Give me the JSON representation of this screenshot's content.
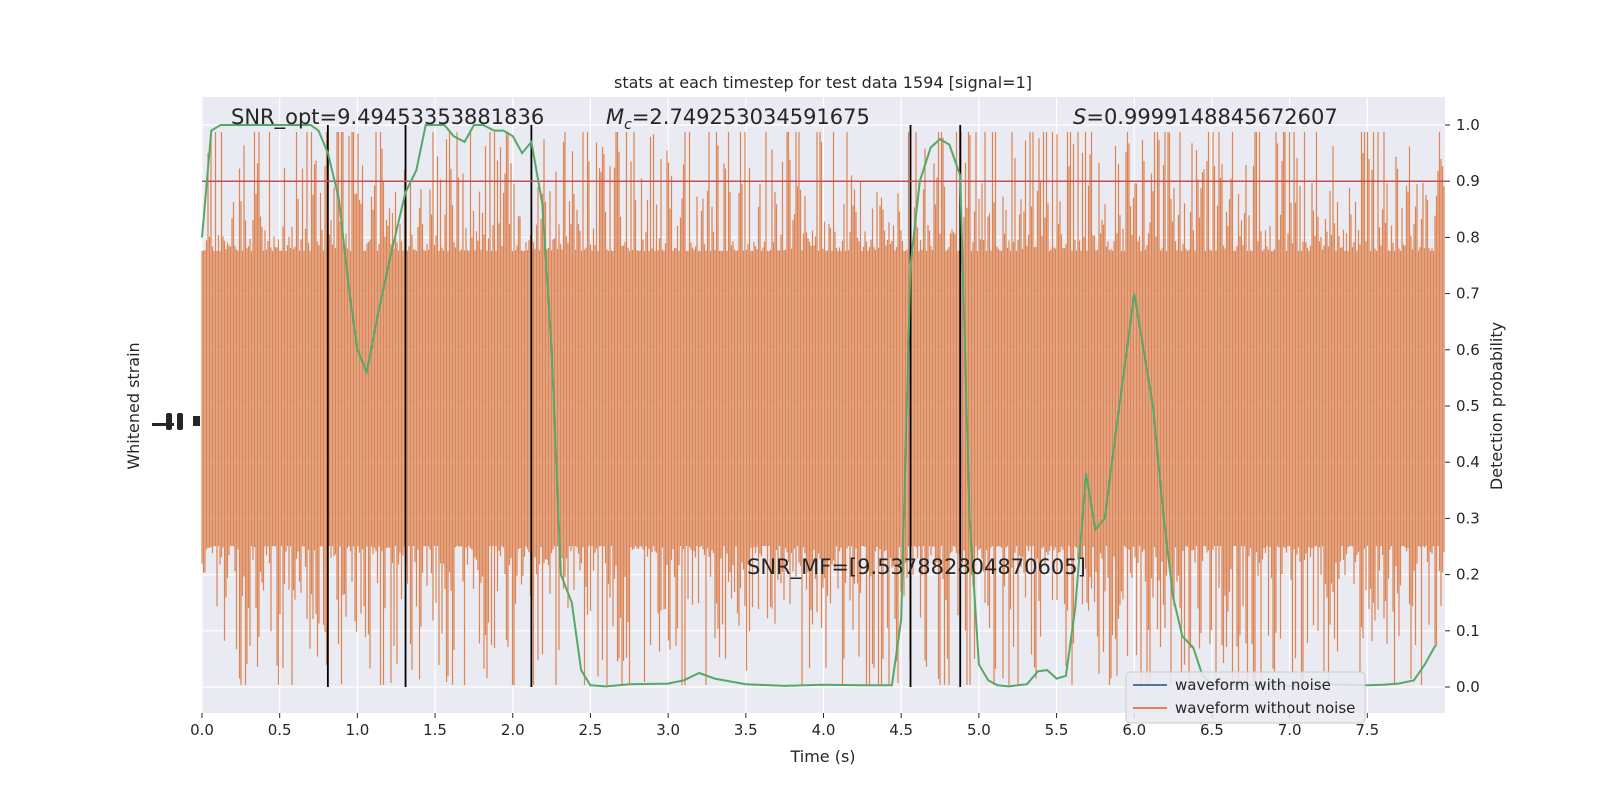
{
  "chart_data": {
    "type": "line",
    "title": "stats at each timestep for test data 1594 [signal=1]",
    "xlabel": "Time (s)",
    "ylabel_left": "Whitened strain",
    "ylabel_right": "Detection probability",
    "xlim": [
      0.0,
      8.0
    ],
    "ylim_right": [
      -0.05,
      1.05
    ],
    "x_ticks": [
      "0.0",
      "0.5",
      "1.0",
      "1.5",
      "2.0",
      "2.5",
      "3.0",
      "3.5",
      "4.0",
      "4.5",
      "5.0",
      "5.5",
      "6.0",
      "6.5",
      "7.0",
      "7.5"
    ],
    "y_ticks_right": [
      "0.0",
      "0.1",
      "0.2",
      "0.3",
      "0.4",
      "0.5",
      "0.6",
      "0.7",
      "0.8",
      "0.9",
      "1.0"
    ],
    "grid": true,
    "legend_placement": "lower-right",
    "threshold": 0.9,
    "vertical_markers": [
      0.81,
      1.31,
      2.12,
      4.56,
      4.88
    ],
    "annotations": {
      "snr_opt": "SNR_opt=9.49453353881836",
      "chirp_mass_symbol": "M",
      "chirp_mass_subscript": "c",
      "chirp_mass_value": "=2.749253034591675",
      "score_symbol": "S",
      "score_value": "=0.9999148845672607",
      "snr_mf": "SNR_MF=[9.537882804870605]"
    },
    "series": [
      {
        "name": "waveform with noise",
        "color": "#4c72b0"
      },
      {
        "name": "waveform without noise",
        "color": "#dd8452"
      },
      {
        "color": "#55a868",
        "x": [
          0.0,
          0.06,
          0.12,
          0.25,
          0.4,
          0.55,
          0.7,
          0.75,
          0.81,
          0.88,
          0.95,
          1.0,
          1.06,
          1.13,
          1.2,
          1.25,
          1.31,
          1.38,
          1.44,
          1.5,
          1.56,
          1.62,
          1.69,
          1.75,
          1.81,
          1.88,
          1.94,
          2.0,
          2.06,
          2.12,
          2.19,
          2.25,
          2.31,
          2.38,
          2.44,
          2.5,
          2.6,
          2.75,
          3.0,
          3.1,
          3.2,
          3.3,
          3.5,
          3.75,
          4.0,
          4.25,
          4.44,
          4.5,
          4.56,
          4.62,
          4.69,
          4.75,
          4.81,
          4.88,
          4.94,
          5.0,
          5.06,
          5.12,
          5.19,
          5.25,
          5.31,
          5.38,
          5.44,
          5.5,
          5.56,
          5.62,
          5.69,
          5.75,
          5.81,
          5.88,
          6.0,
          6.06,
          6.12,
          6.19,
          6.25,
          6.31,
          6.38,
          6.44,
          6.5,
          6.6,
          6.75,
          7.0,
          7.25,
          7.5,
          7.6,
          7.7,
          7.8,
          7.87,
          7.94
        ],
        "values": [
          0.8,
          0.99,
          1.0,
          1.0,
          1.0,
          1.0,
          1.0,
          0.99,
          0.95,
          0.87,
          0.7,
          0.6,
          0.56,
          0.66,
          0.75,
          0.81,
          0.88,
          0.92,
          1.0,
          1.0,
          1.0,
          0.98,
          0.97,
          1.0,
          1.0,
          0.99,
          0.99,
          0.98,
          0.95,
          0.97,
          0.86,
          0.6,
          0.2,
          0.15,
          0.03,
          0.003,
          0.001,
          0.005,
          0.006,
          0.012,
          0.025,
          0.015,
          0.005,
          0.002,
          0.004,
          0.003,
          0.003,
          0.12,
          0.75,
          0.9,
          0.96,
          0.975,
          0.965,
          0.91,
          0.3,
          0.04,
          0.012,
          0.003,
          0.001,
          0.003,
          0.005,
          0.028,
          0.03,
          0.015,
          0.02,
          0.14,
          0.38,
          0.28,
          0.3,
          0.45,
          0.7,
          0.6,
          0.5,
          0.3,
          0.16,
          0.09,
          0.07,
          0.02,
          0.005,
          0.003,
          0.004,
          0.002,
          0.005,
          0.003,
          0.004,
          0.006,
          0.012,
          0.04,
          0.075
        ]
      }
    ]
  }
}
